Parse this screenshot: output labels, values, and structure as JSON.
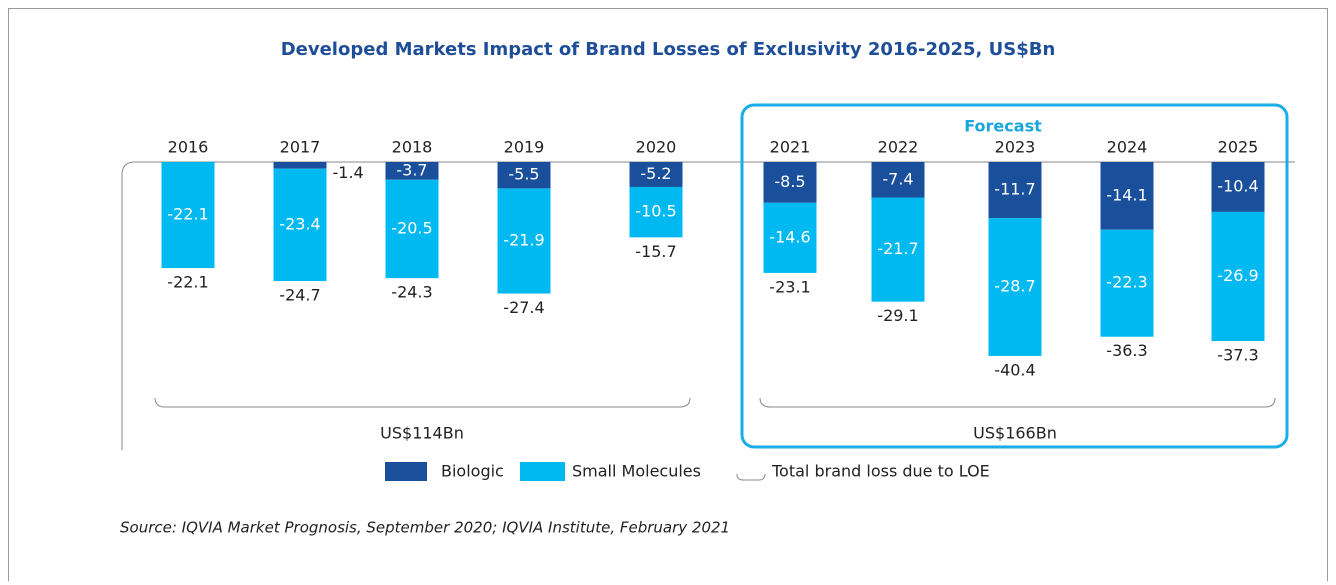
{
  "chart_data": {
    "type": "stacked-bar",
    "title": "Developed Markets Impact of Brand Losses of Exclusivity 2016-2025, US$Bn",
    "categories": [
      "2016",
      "2017",
      "2018",
      "2019",
      "2020",
      "2021",
      "2022",
      "2023",
      "2024",
      "2025"
    ],
    "series": [
      {
        "name": "Biologic",
        "color": "#1a4f9c",
        "values": [
          null,
          -1.4,
          -3.7,
          -5.5,
          -5.2,
          -8.5,
          -7.4,
          -11.7,
          -14.1,
          -10.4
        ]
      },
      {
        "name": "Small Molecules",
        "color": "#00b9f1",
        "values": [
          -22.1,
          -23.4,
          -20.5,
          -21.9,
          -10.5,
          -14.6,
          -21.7,
          -28.7,
          -22.3,
          -26.9
        ]
      }
    ],
    "totals": [
      -22.1,
      -24.7,
      -24.3,
      -27.4,
      -15.7,
      -23.1,
      -29.1,
      -40.4,
      -36.3,
      -37.3
    ],
    "forecast_label": "Forecast",
    "groups": [
      "US$114Bn",
      "US$166Bn"
    ],
    "total_legend": "Total brand loss due to LOE",
    "source": "Source: IQVIA Market Prognosis, September 2020; IQVIA Institute, February 2021"
  }
}
